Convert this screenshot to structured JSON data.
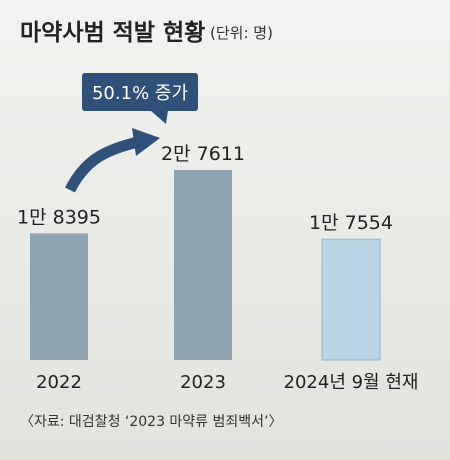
{
  "chart_data": {
    "type": "bar",
    "title": "마약사범 적발 현황",
    "unit_label": "(단위: 명)",
    "categories": [
      "2022",
      "2023",
      "2024년 9월 현재"
    ],
    "values": [
      18395,
      27611,
      17554
    ],
    "value_labels": [
      "1만 8395",
      "2만 7611",
      "1만 7554"
    ],
    "callout": "50.1% 증가",
    "source": "〈자료: 대검찰청 ‘2023 마약류 범죄백서’〉",
    "colors": {
      "bar": "#8fa4b2",
      "bar_highlight": "#b9d4e2",
      "bar_highlight_border": "#8fb6cc",
      "callout": "#2f5078",
      "arrow": "#2f5078"
    },
    "ylim": [
      0,
      30000
    ]
  }
}
